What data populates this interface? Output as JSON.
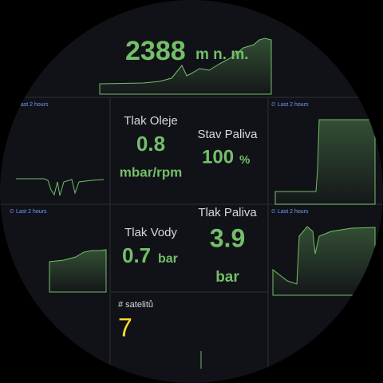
{
  "altitude": {
    "value": 2388,
    "unit": "m n. m."
  },
  "time_ranges": [
    "Last 2 hours",
    "Last 2 hours",
    "Last 2 hours",
    "Last 2 hours"
  ],
  "oil_pressure": {
    "label": "Tlak Oleje",
    "value": 0.8,
    "unit": "mbar/rpm"
  },
  "fuel_level": {
    "label": "Stav Paliva",
    "value": 100,
    "unit": "%"
  },
  "water_pressure": {
    "label": "Tlak Vody",
    "value": 0.7,
    "unit": "bar"
  },
  "fuel_pressure": {
    "label": "Tlak Paliva",
    "value": 3.9,
    "unit": "bar"
  },
  "satellites": {
    "label": "# satelitů",
    "value": 7
  }
}
